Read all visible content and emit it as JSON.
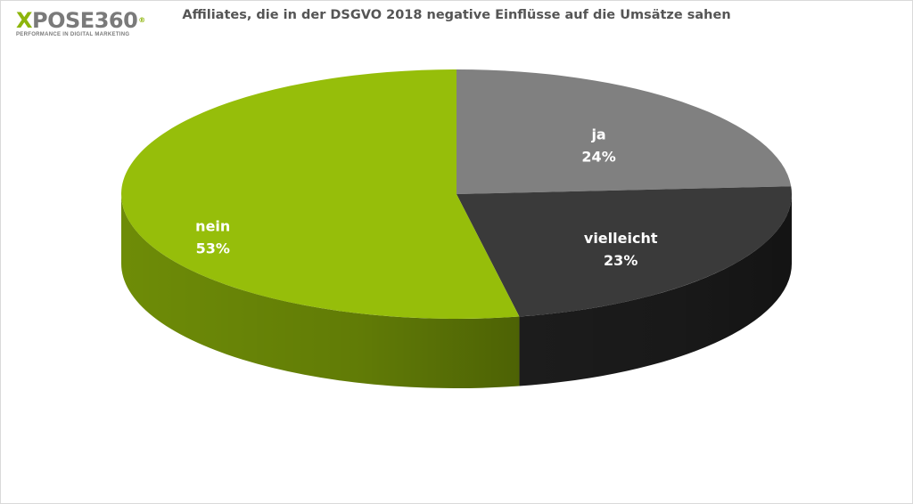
{
  "logo": {
    "brand_x": "X",
    "brand_rest": "POSE360",
    "registered": "®",
    "tagline": "PERFORMANCE IN DIGITAL MARKETING"
  },
  "chart_data": {
    "type": "pie",
    "title": "Affiliates, die in der DSGVO 2018 negative Einflüsse auf die Umsätze sahen",
    "three_d": true,
    "slices": [
      {
        "label": "ja",
        "value": 24,
        "value_label": "24%",
        "color": "#808080"
      },
      {
        "label": "vielleicht",
        "value": 23,
        "value_label": "23%",
        "color": "#3a3a3a"
      },
      {
        "label": "nein",
        "value": 53,
        "value_label": "53%",
        "color": "#96be0a"
      }
    ],
    "side_colors": {
      "ja": "#5e5e5e",
      "vielleicht": "#1c1c1c",
      "nein": "#6e8c07"
    }
  }
}
